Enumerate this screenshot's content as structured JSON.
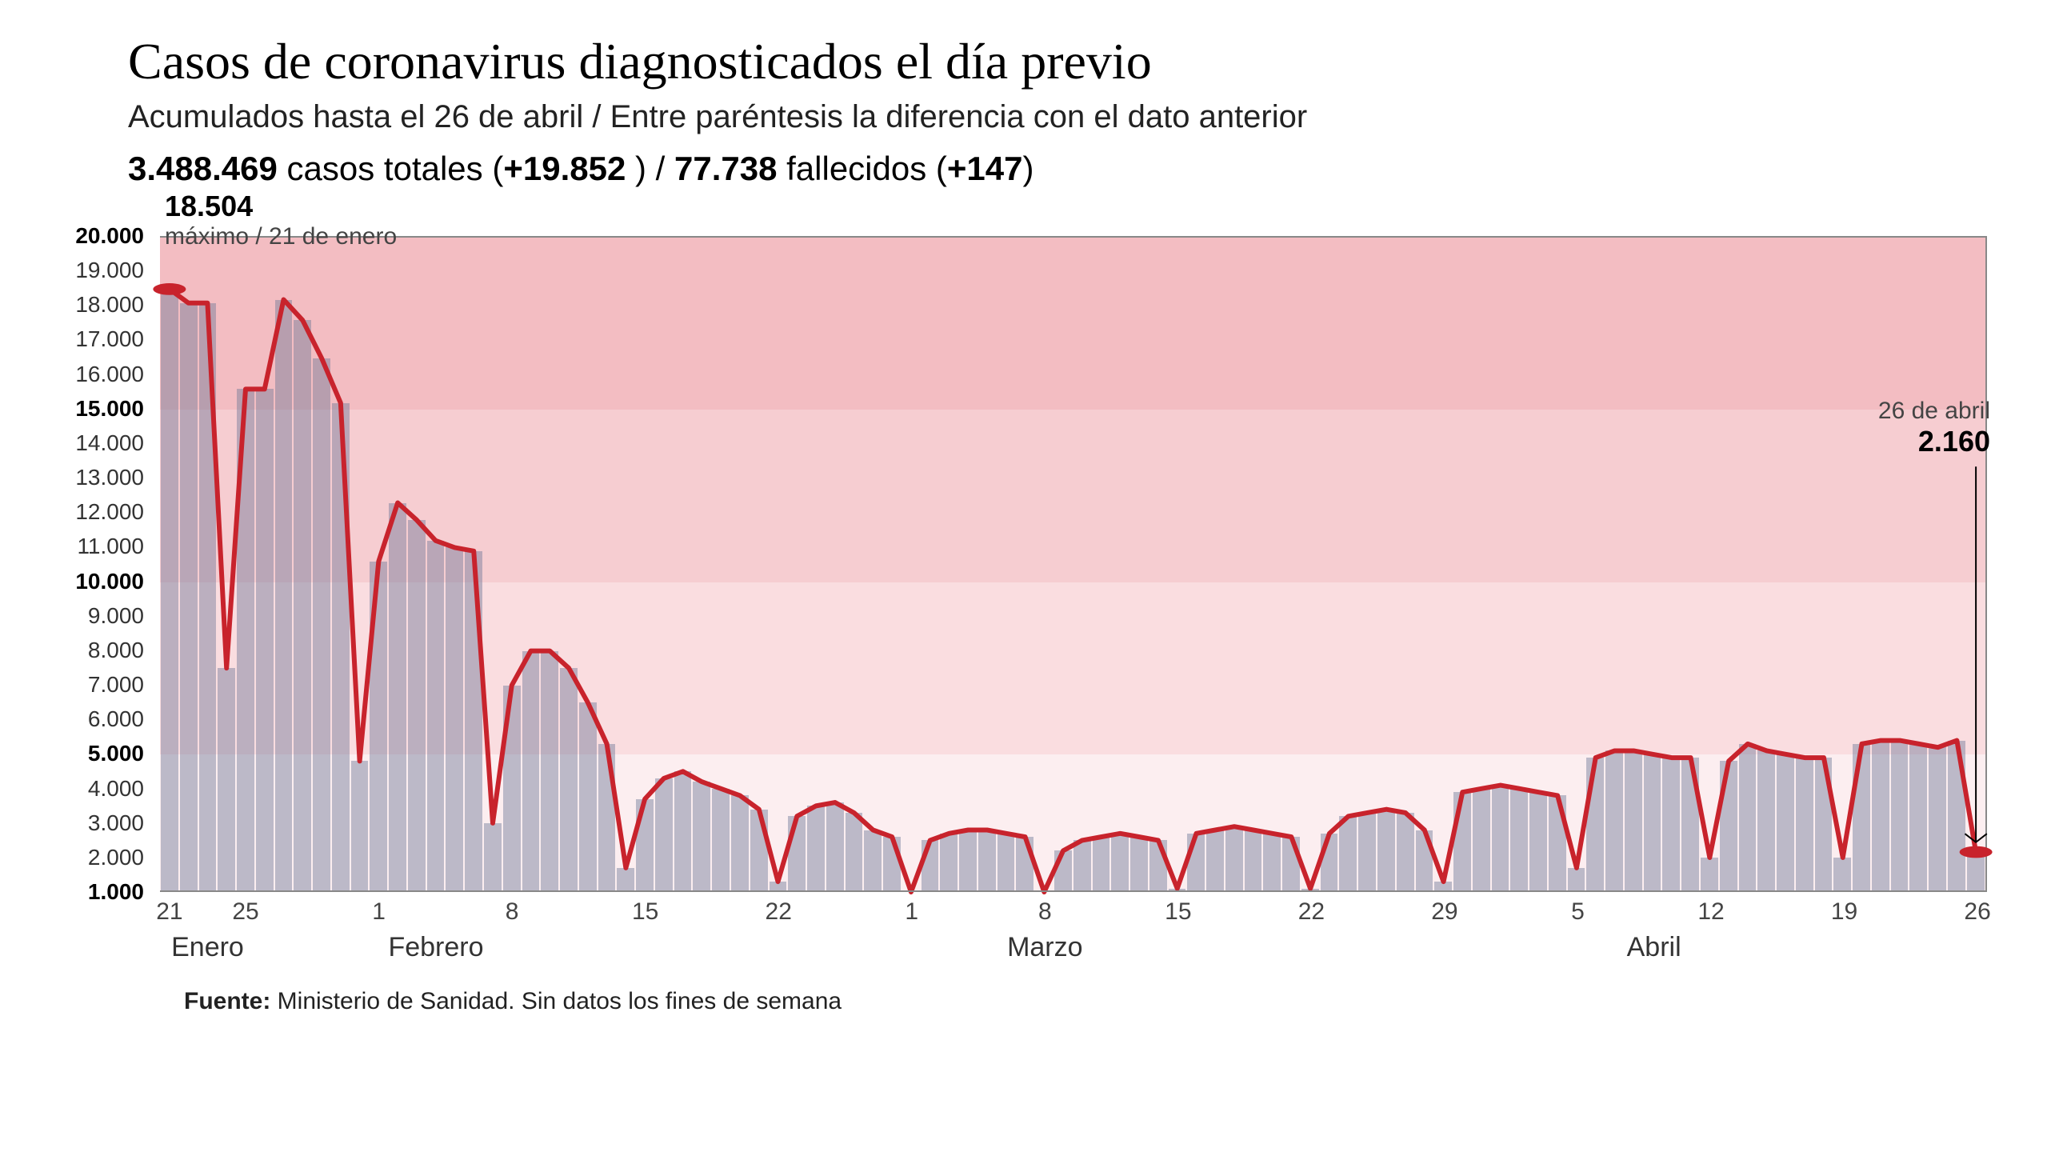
{
  "title": "Casos de coronavirus diagnosticados el día previo",
  "subtitle": "Acumulados hasta el 26 de abril / Entre paréntesis la diferencia con el dato anterior",
  "summary": {
    "cases_total": "3.488.469",
    "cases_label": " casos totales (",
    "cases_delta": "+19.852",
    "mid": " ) / ",
    "deaths_total": "77.738",
    "deaths_label": " fallecidos (",
    "deaths_delta": "+147",
    "end": ")"
  },
  "chart": {
    "type": "bar+line",
    "y": {
      "min": 1000,
      "max": 20000,
      "ticks": [
        {
          "v": 20000,
          "label": "20.000",
          "bold": true
        },
        {
          "v": 19000,
          "label": "19.000",
          "bold": false
        },
        {
          "v": 18000,
          "label": "18.000",
          "bold": false
        },
        {
          "v": 17000,
          "label": "17.000",
          "bold": false
        },
        {
          "v": 16000,
          "label": "16.000",
          "bold": false
        },
        {
          "v": 15000,
          "label": "15.000",
          "bold": true
        },
        {
          "v": 14000,
          "label": "14.000",
          "bold": false
        },
        {
          "v": 13000,
          "label": "13.000",
          "bold": false
        },
        {
          "v": 12000,
          "label": "12.000",
          "bold": false
        },
        {
          "v": 11000,
          "label": "11.000",
          "bold": false
        },
        {
          "v": 10000,
          "label": "10.000",
          "bold": true
        },
        {
          "v": 9000,
          "label": "9.000",
          "bold": false
        },
        {
          "v": 8000,
          "label": "8.000",
          "bold": false
        },
        {
          "v": 7000,
          "label": "7.000",
          "bold": false
        },
        {
          "v": 6000,
          "label": "6.000",
          "bold": false
        },
        {
          "v": 5000,
          "label": "5.000",
          "bold": true
        },
        {
          "v": 4000,
          "label": "4.000",
          "bold": false
        },
        {
          "v": 3000,
          "label": "3.000",
          "bold": false
        },
        {
          "v": 2000,
          "label": "2.000",
          "bold": false
        },
        {
          "v": 1000,
          "label": "1.000",
          "bold": true
        }
      ],
      "bands": [
        {
          "from": 15000,
          "to": 20000,
          "color": "#f3bdc2"
        },
        {
          "from": 10000,
          "to": 15000,
          "color": "#f6cdd1"
        },
        {
          "from": 5000,
          "to": 10000,
          "color": "#fadde0"
        },
        {
          "from": 1000,
          "to": 5000,
          "color": "#fceef0"
        }
      ]
    },
    "x": {
      "day_ticks": [
        {
          "index": 0,
          "label": "21"
        },
        {
          "index": 4,
          "label": "25"
        },
        {
          "index": 11,
          "label": "1"
        },
        {
          "index": 18,
          "label": "8"
        },
        {
          "index": 25,
          "label": "15"
        },
        {
          "index": 32,
          "label": "22"
        },
        {
          "index": 39,
          "label": "1"
        },
        {
          "index": 46,
          "label": "8"
        },
        {
          "index": 53,
          "label": "15"
        },
        {
          "index": 60,
          "label": "22"
        },
        {
          "index": 67,
          "label": "29"
        },
        {
          "index": 74,
          "label": "5"
        },
        {
          "index": 81,
          "label": "12"
        },
        {
          "index": 88,
          "label": "19"
        },
        {
          "index": 95,
          "label": "26"
        }
      ],
      "month_labels": [
        {
          "index": 2,
          "label": "Enero"
        },
        {
          "index": 14,
          "label": "Febrero"
        },
        {
          "index": 46,
          "label": "Marzo"
        },
        {
          "index": 78,
          "label": "Abril"
        }
      ]
    },
    "values": [
      18504,
      18100,
      18100,
      7500,
      15600,
      15600,
      18200,
      17600,
      16500,
      15200,
      4800,
      10600,
      12300,
      11800,
      11200,
      11000,
      10900,
      3000,
      7000,
      8000,
      8000,
      7500,
      6500,
      5300,
      1700,
      3700,
      4300,
      4500,
      4200,
      4000,
      3800,
      3400,
      1300,
      3200,
      3500,
      3600,
      3300,
      2800,
      2600,
      900,
      2500,
      2700,
      2800,
      2800,
      2700,
      2600,
      900,
      2200,
      2500,
      2600,
      2700,
      2600,
      2500,
      1100,
      2700,
      2800,
      2900,
      2800,
      2700,
      2600,
      1100,
      2700,
      3200,
      3300,
      3400,
      3300,
      2800,
      1300,
      3900,
      4000,
      4100,
      4000,
      3900,
      3800,
      1700,
      4900,
      5100,
      5100,
      5000,
      4900,
      4900,
      2000,
      4800,
      5300,
      5100,
      5000,
      4900,
      4900,
      2000,
      5300,
      5400,
      5400,
      5300,
      5200,
      5400,
      2160
    ],
    "line_color": "#c8232c",
    "line_width": 6,
    "bar_color": "rgba(110,120,150,0.45)",
    "dot_radius": 9,
    "annotations": {
      "max": {
        "value": "18.504",
        "sub": "máximo / 21 de enero"
      },
      "last": {
        "date": "26 de abril",
        "value": "2.160"
      }
    }
  },
  "source": {
    "label": "Fuente:",
    "text": " Ministerio de Sanidad. Sin datos los fines de semana"
  }
}
